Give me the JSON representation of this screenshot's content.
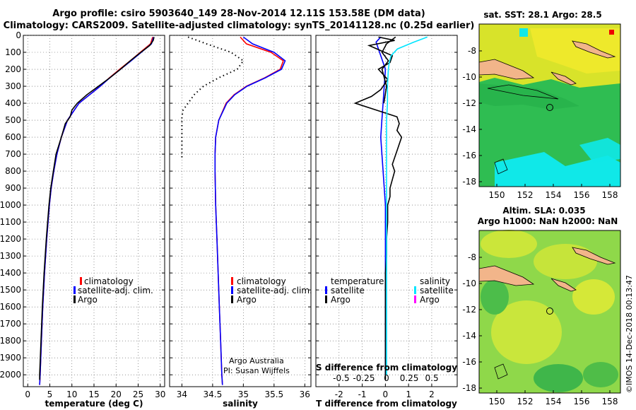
{
  "title": {
    "line1": "Argo profile: csiro 5903640_149 28-Nov-2014 12.11S 153.58E (DM data)",
    "line2": "Climatology: CARS2009. Satellite-adjusted climatology: synTS_20141128.nc (0.25d earlier)"
  },
  "colors": {
    "climatology": "#ff0000",
    "satellite": "#0000ff",
    "argo": "#000000",
    "sal_satellite": "#00e5ff",
    "sal_argo": "#ff00ff"
  },
  "chart_data": [
    {
      "type": "line",
      "id": "temperature",
      "xlabel": "temperature (deg C)",
      "ylabel": "",
      "xlim": [
        -1,
        31
      ],
      "ylim": [
        2070,
        0
      ],
      "xticks": [
        0,
        5,
        10,
        15,
        20,
        25,
        30
      ],
      "yticks": [
        0,
        100,
        200,
        300,
        400,
        500,
        600,
        700,
        800,
        900,
        1000,
        1100,
        1200,
        1300,
        1400,
        1500,
        1600,
        1700,
        1800,
        1900,
        2000
      ],
      "legend": [
        "climatology",
        "satellite-adj. clim.",
        "Argo"
      ],
      "series": [
        {
          "name": "climatology",
          "depth": [
            10,
            50,
            100,
            150,
            200,
            250,
            300,
            350,
            400,
            450,
            500,
            600,
            700,
            800,
            900,
            1000,
            1200,
            1400,
            1600,
            1800,
            2000,
            2060
          ],
          "values": [
            28.3,
            27.8,
            25.5,
            23.2,
            20.8,
            18.5,
            16.4,
            14.0,
            11.6,
            10.3,
            9.0,
            7.6,
            6.6,
            5.9,
            5.3,
            4.9,
            4.3,
            3.8,
            3.4,
            3.1,
            2.8,
            2.7
          ]
        },
        {
          "name": "satellite-adj. clim.",
          "depth": [
            10,
            50,
            100,
            150,
            200,
            250,
            300,
            350,
            400,
            450,
            500,
            600,
            700,
            800,
            900,
            1000,
            1200,
            1400,
            1600,
            1800,
            2000,
            2060
          ],
          "values": [
            28.5,
            28.0,
            25.7,
            23.4,
            21.0,
            18.6,
            16.4,
            14.0,
            11.6,
            10.3,
            9.0,
            7.6,
            6.6,
            5.9,
            5.3,
            4.9,
            4.3,
            3.8,
            3.4,
            3.1,
            2.8,
            2.7
          ]
        },
        {
          "name": "Argo",
          "depth": [
            10,
            30,
            60,
            100,
            150,
            200,
            250,
            300,
            350,
            400,
            440,
            480,
            520,
            600,
            700,
            800,
            900,
            1000,
            1200,
            1400,
            1600,
            1800,
            2000,
            2030
          ],
          "values": [
            28.6,
            28.4,
            27.6,
            25.6,
            23.2,
            21.0,
            18.6,
            16.0,
            13.4,
            11.2,
            10.0,
            9.6,
            8.5,
            7.6,
            6.4,
            5.8,
            5.2,
            4.8,
            4.2,
            3.7,
            3.3,
            3.0,
            2.7,
            2.7
          ]
        }
      ]
    },
    {
      "type": "line",
      "id": "salinity",
      "xlabel": "salinity",
      "xlim": [
        33.8,
        36.1
      ],
      "ylim": [
        2070,
        0
      ],
      "xticks": [
        34,
        34.5,
        35,
        35.5,
        36
      ],
      "xticklabels": [
        "34",
        "34.5",
        "35",
        "35.5",
        "36"
      ],
      "legend": [
        "climatology",
        "satellite-adj. clim.",
        "Argo"
      ],
      "notes": [
        "Argo Australia",
        "PI: Susan Wijffels"
      ],
      "series": [
        {
          "name": "climatology",
          "depth": [
            10,
            50,
            100,
            150,
            200,
            250,
            300,
            350,
            400,
            500,
            600,
            700,
            800,
            1000,
            1200,
            1400,
            1600,
            1800,
            2000,
            2060
          ],
          "values": [
            34.95,
            35.05,
            35.45,
            35.65,
            35.6,
            35.35,
            35.05,
            34.85,
            34.72,
            34.6,
            34.55,
            34.54,
            34.54,
            34.55,
            34.57,
            34.59,
            34.61,
            34.63,
            34.65,
            34.66
          ]
        },
        {
          "name": "satellite-adj. clim.",
          "depth": [
            10,
            50,
            100,
            150,
            200,
            250,
            300,
            350,
            400,
            500,
            600,
            700,
            800,
            1000,
            1200,
            1400,
            1600,
            1800,
            2000,
            2060
          ],
          "values": [
            35.0,
            35.15,
            35.5,
            35.68,
            35.62,
            35.36,
            35.06,
            34.86,
            34.73,
            34.6,
            34.55,
            34.54,
            34.54,
            34.55,
            34.57,
            34.59,
            34.61,
            34.63,
            34.65,
            34.66
          ]
        },
        {
          "name": "Argo",
          "depth": [
            10,
            50,
            100,
            150,
            200,
            250,
            300,
            350,
            400,
            440,
            480,
            520,
            560,
            600,
            640,
            680,
            720
          ],
          "values": [
            34.1,
            34.4,
            34.8,
            35.0,
            34.9,
            34.6,
            34.35,
            34.2,
            34.1,
            34.02,
            34.0,
            34.0,
            34.0,
            34.0,
            34.0,
            34.0,
            34.0
          ]
        }
      ]
    },
    {
      "type": "line",
      "id": "difference",
      "xlabel": "T difference from climatology",
      "xlabel2": "S difference from climatology",
      "xlim": [
        -3,
        3.1
      ],
      "ylim": [
        2070,
        0
      ],
      "xticks": [
        -2,
        -1,
        0,
        1,
        2
      ],
      "xticks2": [
        -0.5,
        -0.25,
        0,
        0.25,
        0.5
      ],
      "xticklabels2": [
        "-0.5",
        "-0.25",
        "0",
        "0.25",
        "0.5"
      ],
      "legend_left_title": "temperature",
      "legend_right_title": "salinity",
      "legend_left": [
        "satellite",
        "Argo"
      ],
      "legend_right": [
        "satellite",
        "Argo"
      ],
      "series": [
        {
          "name": "T satellite",
          "depth": [
            10,
            40,
            80,
            120,
            160,
            200,
            300,
            400,
            500,
            600,
            800,
            1000,
            1400,
            1800,
            2000
          ],
          "values": [
            -0.2,
            -0.4,
            -0.3,
            -0.2,
            -0.1,
            0.0,
            -0.05,
            -0.1,
            -0.15,
            -0.2,
            -0.1,
            0.0,
            0.0,
            0.0,
            0.0
          ]
        },
        {
          "name": "T Argo",
          "depth": [
            10,
            30,
            60,
            90,
            120,
            160,
            200,
            260,
            320,
            360,
            400,
            440,
            480,
            520,
            560,
            600,
            640,
            680,
            720,
            760,
            800,
            850,
            900,
            950,
            1000,
            1100,
            1200,
            1300,
            1400,
            1500,
            1600,
            1700,
            1800,
            1900,
            2000,
            2030
          ],
          "values": [
            -0.3,
            0.4,
            -0.7,
            -0.2,
            0.3,
            0.2,
            -0.3,
            0.1,
            -0.2,
            -0.6,
            -1.3,
            -0.4,
            0.5,
            0.6,
            0.5,
            0.7,
            0.6,
            0.5,
            0.4,
            0.3,
            0.4,
            0.3,
            0.2,
            0.2,
            0.1,
            0.1,
            0.05,
            0.05,
            0.0,
            0.0,
            0.0,
            0.0,
            0.0,
            0.0,
            0.0,
            0.0
          ]
        },
        {
          "name": "S satellite",
          "depth": [
            10,
            40,
            80,
            120,
            160,
            200,
            300,
            400,
            500,
            700,
            900,
            1200,
            1500,
            1800,
            2000
          ],
          "values": [
            0.45,
            0.3,
            0.12,
            0.05,
            0.03,
            0.02,
            0.01,
            0.01,
            0.0,
            0.0,
            0.0,
            0.0,
            0.0,
            0.0,
            0.0
          ]
        },
        {
          "name": "S Argo",
          "depth": [
            10,
            50,
            100,
            150,
            200,
            300,
            400
          ],
          "values": [
            0.1,
            0.0,
            -0.05,
            0.02,
            -0.05,
            0.0,
            -0.03
          ]
        }
      ]
    }
  ],
  "maps": {
    "top": {
      "title": "sat. SST: 28.1 Argo: 28.5",
      "xticks": [
        "150",
        "152",
        "154",
        "156",
        "158"
      ],
      "yticks": [
        "-8",
        "-10",
        "-12",
        "-14",
        "-16",
        "-18"
      ]
    },
    "bottom": {
      "title_line1": "Altim. SLA: 0.035",
      "title_line2": "Argo h1000: NaN h2000: NaN",
      "xticks": [
        "150",
        "152",
        "154",
        "156",
        "158"
      ],
      "yticks": [
        "-8",
        "-10",
        "-12",
        "-14",
        "-16",
        "-18"
      ]
    }
  },
  "credit": "©IMOS 14-Dec-2018 00:13:47"
}
